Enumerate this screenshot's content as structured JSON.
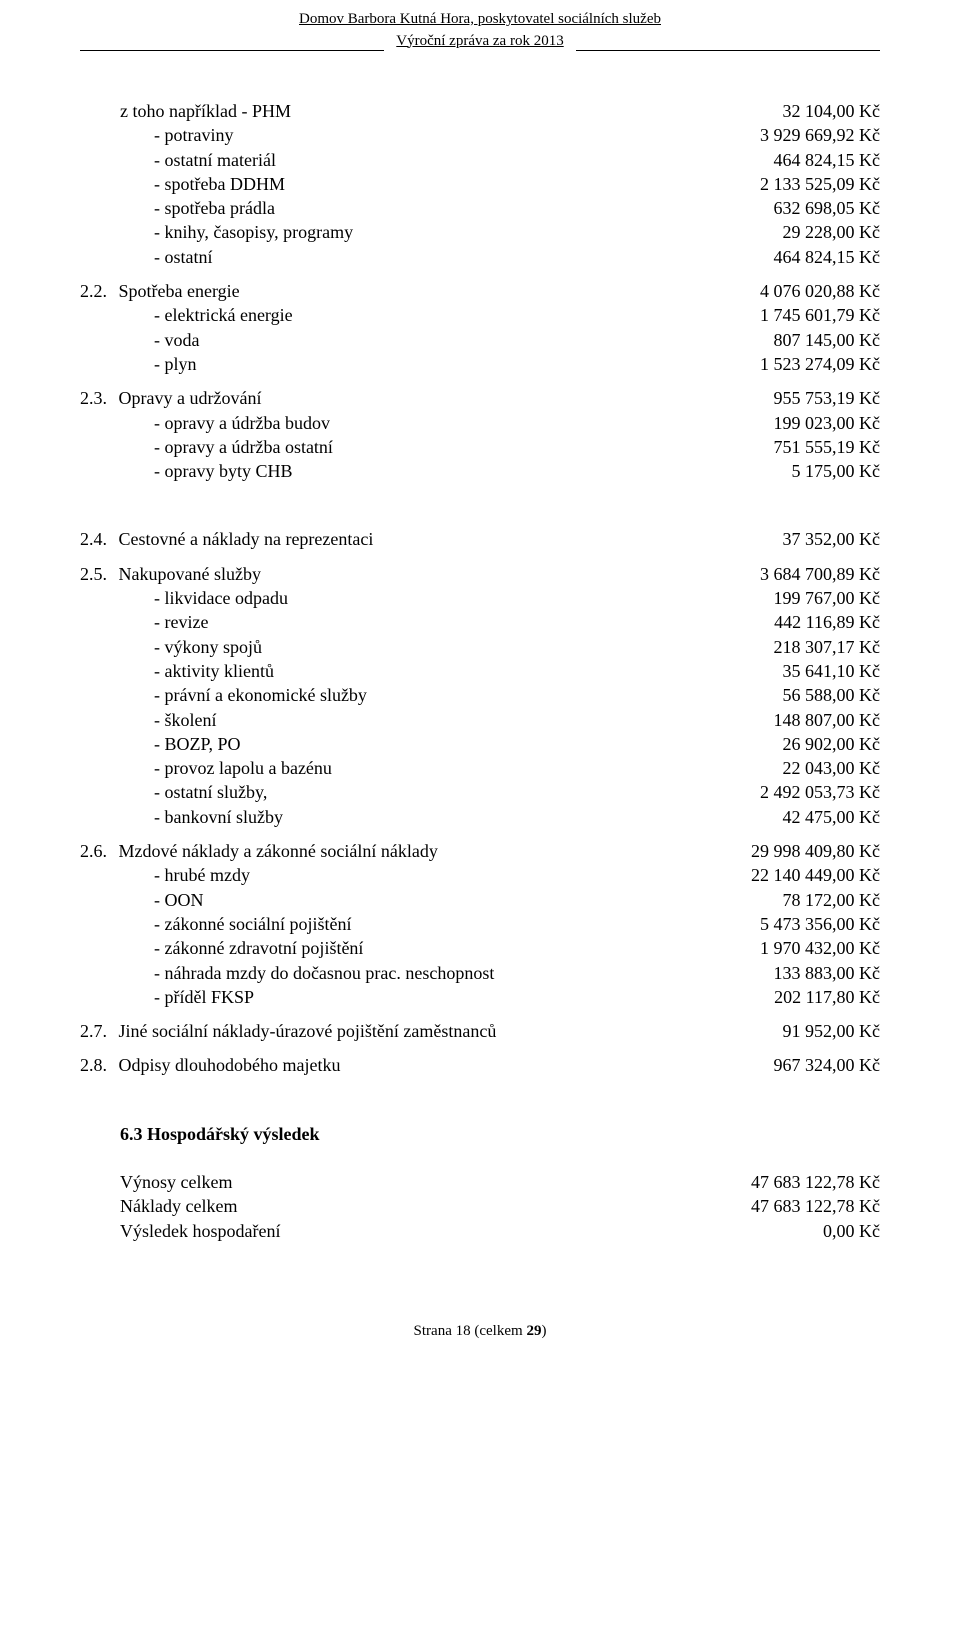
{
  "header": {
    "org": "Domov Barbora Kutná Hora, poskytovatel sociálních služeb",
    "report": "Výroční zpráva za rok 2013"
  },
  "block1": {
    "items": [
      {
        "label": "z toho například - PHM",
        "value": "32 104,00 Kč"
      },
      {
        "label": "- potraviny",
        "value": "3 929 669,92 Kč"
      },
      {
        "label": "- ostatní materiál",
        "value": "464 824,15 Kč"
      },
      {
        "label": "- spotřeba DDHM",
        "value": "2 133 525,09 Kč"
      },
      {
        "label": "- spotřeba prádla",
        "value": "632 698,05 Kč"
      },
      {
        "label": "- knihy, časopisy, programy",
        "value": "29 228,00 Kč"
      },
      {
        "label": "- ostatní",
        "value": "464 824,15 Kč"
      }
    ]
  },
  "s22": {
    "num": "2.2.",
    "title": "Spotřeba energie",
    "title_value": "4 076 020,88 Kč",
    "items": [
      {
        "label": "- elektrická energie",
        "value": "1 745 601,79 Kč"
      },
      {
        "label": "- voda",
        "value": "807 145,00 Kč"
      },
      {
        "label": "- plyn",
        "value": "1 523 274,09 Kč"
      }
    ]
  },
  "s23": {
    "num": "2.3.",
    "title": "Opravy a udržování",
    "title_value": "955 753,19 Kč",
    "items": [
      {
        "label": "- opravy a údržba budov",
        "value": "199 023,00 Kč"
      },
      {
        "label": "- opravy a údržba ostatní",
        "value": "751 555,19 Kč"
      },
      {
        "label": "- opravy byty CHB",
        "value": "5 175,00 Kč"
      }
    ]
  },
  "s24": {
    "num": "2.4.",
    "title": "Cestovné a náklady na reprezentaci",
    "title_value": "37 352,00 Kč"
  },
  "s25": {
    "num": "2.5.",
    "title": "Nakupované služby",
    "title_value": "3 684 700,89 Kč",
    "items": [
      {
        "label": "- likvidace odpadu",
        "value": "199 767,00 Kč"
      },
      {
        "label": "- revize",
        "value": "442 116,89 Kč"
      },
      {
        "label": "- výkony spojů",
        "value": "218 307,17 Kč"
      },
      {
        "label": "- aktivity klientů",
        "value": "35 641,10 Kč"
      },
      {
        "label": "- právní a ekonomické služby",
        "value": "56 588,00 Kč"
      },
      {
        "label": "- školení",
        "value": "148 807,00 Kč"
      },
      {
        "label": "- BOZP, PO",
        "value": "26 902,00 Kč"
      },
      {
        "label": "- provoz lapolu a bazénu",
        "value": "22 043,00 Kč"
      },
      {
        "label": "- ostatní služby,",
        "value": "2 492 053,73 Kč"
      },
      {
        "label": "- bankovní služby",
        "value": "42 475,00 Kč"
      }
    ]
  },
  "s26": {
    "num": "2.6.",
    "title": "Mzdové náklady a zákonné sociální náklady",
    "title_value": "29 998 409,80 Kč",
    "items": [
      {
        "label": "- hrubé mzdy",
        "value": "22 140 449,00 Kč"
      },
      {
        "label": "- OON",
        "value": "78 172,00 Kč"
      },
      {
        "label": "- zákonné sociální pojištění",
        "value": "5 473 356,00 Kč"
      },
      {
        "label": "- zákonné zdravotní pojištění",
        "value": "1 970 432,00 Kč"
      },
      {
        "label": "- náhrada mzdy do dočasnou prac. neschopnost",
        "value": "133 883,00 Kč"
      },
      {
        "label": "- příděl FKSP",
        "value": "202 117,80 Kč"
      }
    ]
  },
  "s27": {
    "num": "2.7.",
    "title": "Jiné sociální náklady-úrazové pojištění zaměstnanců",
    "title_value": "91 952,00 Kč"
  },
  "s28": {
    "num": "2.8.",
    "title": "Odpisy dlouhodobého majetku",
    "title_value": "967 324,00 Kč"
  },
  "result": {
    "heading": "6.3 Hospodářský výsledek",
    "rows": [
      {
        "label": "Výnosy celkem",
        "value": "47 683 122,78 Kč"
      },
      {
        "label": "Náklady celkem",
        "value": "47 683 122,78 Kč"
      },
      {
        "label": "Výsledek hospodaření",
        "value": "0,00 Kč"
      }
    ]
  },
  "footer": {
    "prefix": "Strana 18 ",
    "suffix": "(celkem ",
    "total": "29",
    "close": ")"
  }
}
